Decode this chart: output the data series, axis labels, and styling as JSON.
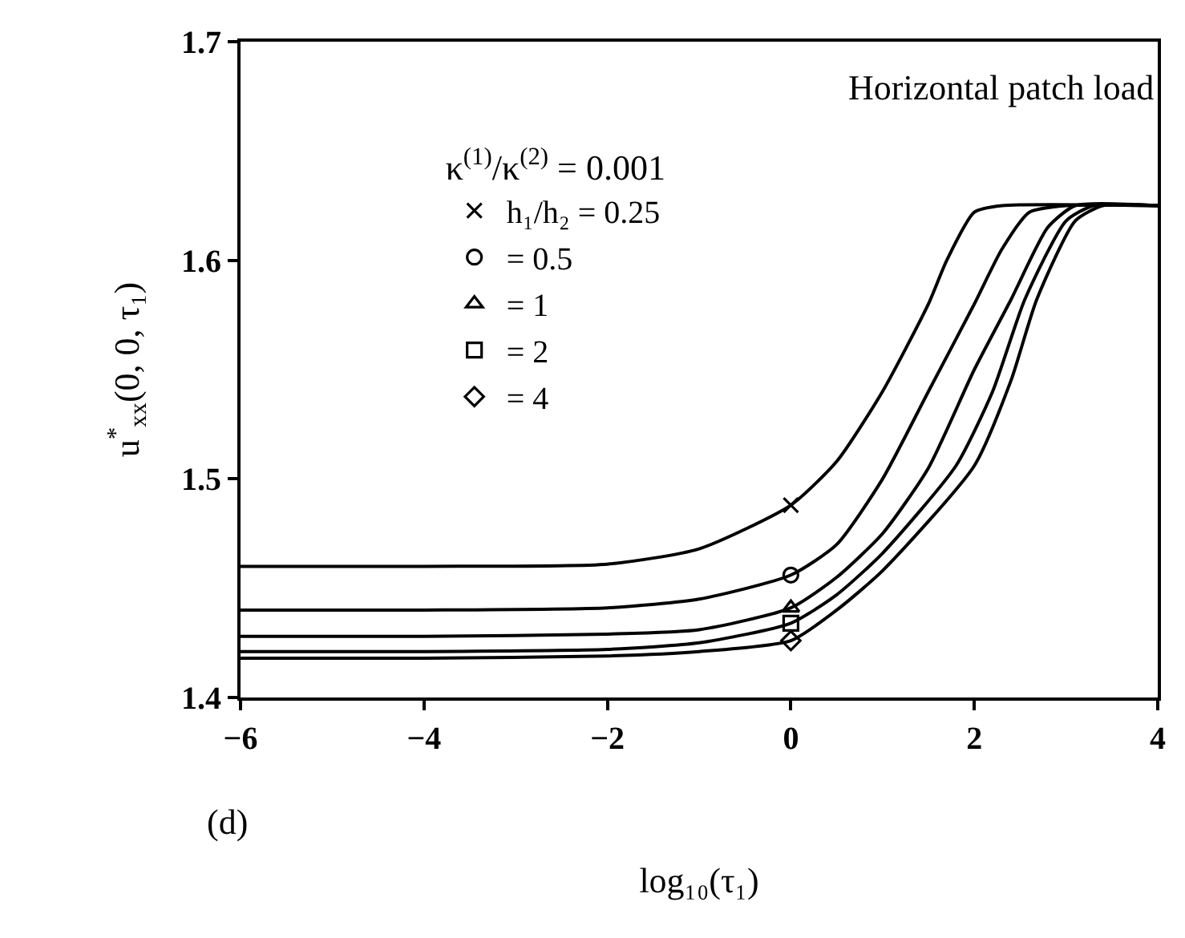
{
  "chart_data": {
    "type": "line",
    "xlabel": "log₁₀(τ₁)",
    "ylabel": "u$^{*}$$_{xx}$(0, 0, τ₁)",
    "legend_title": "κ$^{(1)}$/κ$^{(2)}$ = 0.001",
    "annotations": [
      "Horizontal patch load",
      "(d)"
    ],
    "xlim": [
      -6,
      4
    ],
    "ylim": [
      1.4,
      1.7
    ],
    "xticks": [
      {
        "value": -6,
        "label": "−6"
      },
      {
        "value": -4,
        "label": "−4"
      },
      {
        "value": -2,
        "label": "−2"
      },
      0,
      2,
      4
    ],
    "yticks": [
      1.4,
      1.5,
      1.6,
      1.7
    ],
    "legend": "top left",
    "line_style": "solid",
    "series": [
      {
        "color": "#000000",
        "marker": "none",
        "x": [
          -6,
          -4,
          -2,
          -1,
          0,
          0.5,
          1,
          1.5,
          1.7,
          2,
          2.3,
          4
        ],
        "values": [
          1.46,
          1.46,
          1.461,
          1.468,
          1.488,
          1.508,
          1.54,
          1.58,
          1.6,
          1.622,
          1.625,
          1.625
        ]
      },
      {
        "color": "#000000",
        "marker": "none",
        "x": [
          -6,
          -4,
          -2,
          -1,
          0,
          0.5,
          1,
          1.5,
          2,
          2.3,
          2.6,
          3,
          4
        ],
        "values": [
          1.44,
          1.44,
          1.441,
          1.445,
          1.456,
          1.47,
          1.5,
          1.54,
          1.58,
          1.605,
          1.622,
          1.625,
          1.625
        ]
      },
      {
        "color": "#000000",
        "marker": "none",
        "x": [
          -6,
          -4,
          -2,
          -1,
          0,
          0.5,
          1,
          1.5,
          2,
          2.4,
          2.8,
          3.1,
          4
        ],
        "values": [
          1.428,
          1.428,
          1.429,
          1.431,
          1.441,
          1.455,
          1.475,
          1.505,
          1.55,
          1.582,
          1.615,
          1.625,
          1.625
        ]
      },
      {
        "color": "#000000",
        "marker": "none",
        "x": [
          -6,
          -4,
          -2,
          -1,
          0,
          0.5,
          1,
          1.8,
          2.2,
          2.55,
          3,
          3.3,
          4
        ],
        "values": [
          1.421,
          1.421,
          1.422,
          1.425,
          1.434,
          1.447,
          1.466,
          1.506,
          1.54,
          1.582,
          1.618,
          1.625,
          1.625
        ]
      },
      {
        "color": "#000000",
        "marker": "none",
        "x": [
          -6,
          -4,
          -2,
          -1,
          0,
          0.5,
          1,
          2,
          2.4,
          2.68,
          3.1,
          3.4,
          4
        ],
        "values": [
          1.418,
          1.418,
          1.419,
          1.421,
          1.426,
          1.44,
          1.458,
          1.506,
          1.545,
          1.582,
          1.618,
          1.625,
          1.625
        ]
      },
      {
        "type": "scatter",
        "name": "h₁/h₂ = 0.25",
        "color": "#000000",
        "marker": "cross",
        "x": [
          0
        ],
        "values": [
          1.488
        ]
      },
      {
        "type": "scatter",
        "name": "= 0.5",
        "color": "#000000",
        "marker": "circle",
        "x": [
          0
        ],
        "values": [
          1.456
        ]
      },
      {
        "type": "scatter",
        "name": "= 1",
        "color": "#000000",
        "marker": "triangle",
        "x": [
          0
        ],
        "values": [
          1.441
        ]
      },
      {
        "type": "scatter",
        "name": "= 2",
        "color": "#000000",
        "marker": "square",
        "x": [
          0
        ],
        "values": [
          1.434
        ]
      },
      {
        "type": "scatter",
        "name": "= 4",
        "color": "#000000",
        "marker": "diamond",
        "x": [
          0
        ],
        "values": [
          1.426
        ]
      }
    ]
  }
}
